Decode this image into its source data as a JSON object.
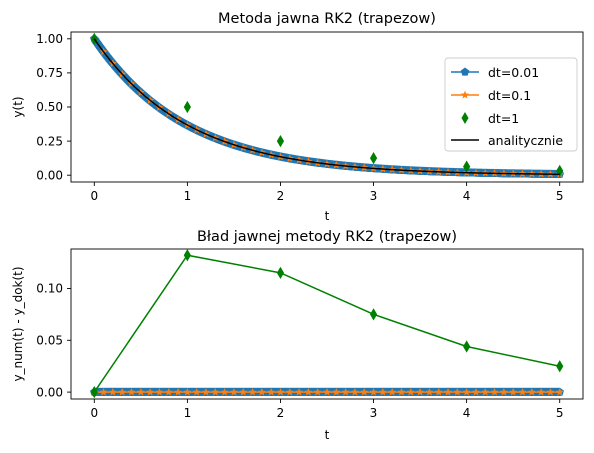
{
  "chart_data": [
    {
      "type": "line",
      "title": "Metoda jawna RK2 (trapezow)",
      "xlabel": "t",
      "ylabel": "y(t)",
      "xlim": [
        -0.25,
        5.25
      ],
      "ylim": [
        -0.05,
        1.05
      ],
      "xticks": [
        0,
        1,
        2,
        3,
        4,
        5
      ],
      "yticks": [
        0.0,
        0.25,
        0.5,
        0.75,
        1.0
      ],
      "ytick_labels": [
        "0.00",
        "0.25",
        "0.50",
        "0.75",
        "1.00"
      ],
      "legend_position": "center-right",
      "series": [
        {
          "name": "dt=0.01",
          "style": "line-pentagon-markers",
          "color": "#1f77b4",
          "function": "exp(-t)",
          "t_start": 0,
          "t_end": 5,
          "dt": 0.01
        },
        {
          "name": "dt=0.1",
          "style": "line-star-markers",
          "color": "#ff7f0e",
          "function": "exp(-t)",
          "t_start": 0,
          "t_end": 5,
          "dt": 0.1
        },
        {
          "name": "dt=1",
          "style": "diamond-markers-only",
          "color": "#008000",
          "x": [
            0,
            1,
            2,
            3,
            4,
            5
          ],
          "y": [
            1.0,
            0.5,
            0.25,
            0.125,
            0.0625,
            0.03125
          ]
        },
        {
          "name": "analitycznie",
          "style": "line",
          "color": "#000000",
          "function": "exp(-t)",
          "t_start": 0,
          "t_end": 5,
          "dt": 0.01
        }
      ]
    },
    {
      "type": "line",
      "title": "Bład jawnej metody RK2 (trapezow)",
      "xlabel": "t",
      "ylabel": "y_num(t) - y_dok(t)",
      "xlim": [
        -0.25,
        5.25
      ],
      "ylim": [
        -0.0066,
        0.138
      ],
      "xticks": [
        0,
        1,
        2,
        3,
        4,
        5
      ],
      "yticks": [
        0.0,
        0.05,
        0.1
      ],
      "ytick_labels": [
        "0.00",
        "0.05",
        "0.10"
      ],
      "series": [
        {
          "name": "dt=0.01",
          "style": "line-pentagon-markers",
          "color": "#1f77b4",
          "x": [
            0,
            5
          ],
          "y": [
            0.0,
            0.0
          ],
          "dt": 0.01
        },
        {
          "name": "dt=0.1",
          "style": "line-star-markers",
          "color": "#ff7f0e",
          "x": [
            0,
            5
          ],
          "y": [
            0.0,
            0.0
          ],
          "dt": 0.1
        },
        {
          "name": "dt=1",
          "style": "line-diamond-markers",
          "color": "#008000",
          "x": [
            0,
            1,
            2,
            3,
            4,
            5
          ],
          "y": [
            0.0,
            0.132,
            0.115,
            0.075,
            0.044,
            0.025
          ]
        }
      ]
    }
  ]
}
